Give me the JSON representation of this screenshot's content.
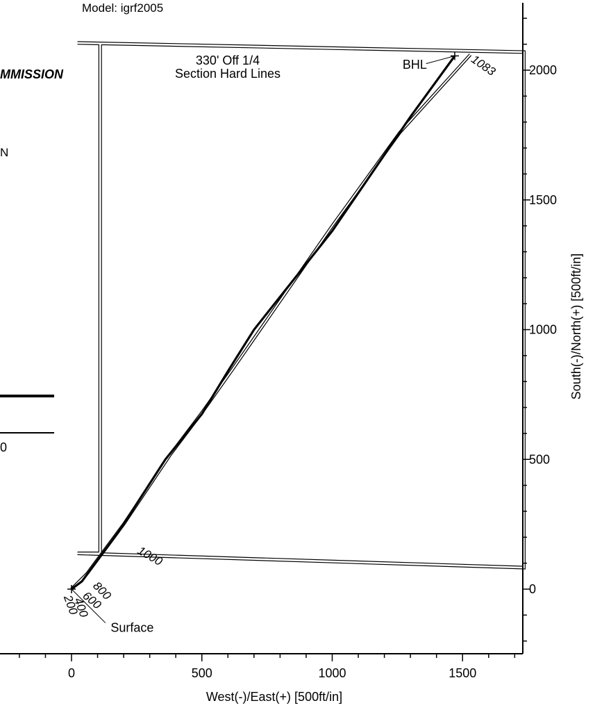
{
  "header": {
    "model_text": "Model: igrf2005"
  },
  "side_text": {
    "commission": "MMISSION",
    "fragment_n": "N",
    "fragment_0": "0"
  },
  "chart_data": {
    "type": "line",
    "title": "",
    "xlabel": "West(-)/East(+) [500ft/in]",
    "ylabel": "South(-)/North(+) [500ft/in]",
    "xlim": [
      -270,
      1735
    ],
    "ylim": [
      -240,
      2215
    ],
    "x_ticks": [
      0,
      500,
      1000,
      1500
    ],
    "x_tick_labels": [
      "0",
      "500",
      "1000",
      "1500"
    ],
    "y_ticks": [
      0,
      500,
      1000,
      1500,
      2000
    ],
    "y_tick_labels": [
      "0",
      "500",
      "1000",
      "1500",
      "2000"
    ],
    "grid": false,
    "y_axis_side": "right",
    "series": [
      {
        "name": "",
        "role": "planned",
        "points": [
          [
            0,
            0
          ],
          [
            60,
            60
          ],
          [
            200,
            250
          ],
          [
            380,
            520
          ],
          [
            500,
            680
          ],
          [
            620,
            850
          ],
          [
            1000,
            1400
          ],
          [
            1260,
            1760
          ],
          [
            1530,
            2060
          ]
        ]
      },
      {
        "name": "",
        "role": "actual",
        "points": [
          [
            0,
            0
          ],
          [
            40,
            30
          ],
          [
            180,
            220
          ],
          [
            360,
            500
          ],
          [
            500,
            675
          ],
          [
            600,
            840
          ],
          [
            700,
            1000
          ],
          [
            1000,
            1380
          ],
          [
            1300,
            1820
          ],
          [
            1470,
            2055
          ]
        ]
      }
    ],
    "hard_lines_polygon": [
      [
        23,
        2105
      ],
      [
        1735,
        2070
      ],
      [
        1735,
        83
      ],
      [
        23,
        138
      ],
      [
        110,
        138
      ],
      [
        110,
        2105
      ]
    ],
    "hard_lines_label": [
      "330' Off 1/4",
      "Section Hard Lines"
    ],
    "md_labels": [
      {
        "text": "200",
        "x": -30,
        "y": -30,
        "angle": 70
      },
      {
        "text": "400",
        "x": 10,
        "y": -40,
        "angle": 70
      },
      {
        "text": "600",
        "x": 40,
        "y": -30,
        "angle": 40
      },
      {
        "text": "800",
        "x": 80,
        "y": 10,
        "angle": 45
      },
      {
        "text": "1000",
        "x": 250,
        "y": 140,
        "angle": 30
      },
      {
        "text": "1083",
        "x": 1530,
        "y": 2035,
        "angle": 35
      }
    ],
    "annotations": [
      {
        "text": "BHL",
        "x": 1270,
        "y": 2005
      },
      {
        "text": "Surface",
        "x": 150,
        "y": -165
      }
    ],
    "markers": [
      {
        "name": "surface",
        "x": 0,
        "y": 0
      },
      {
        "name": "bhl",
        "x": 1470,
        "y": 2055
      }
    ]
  }
}
